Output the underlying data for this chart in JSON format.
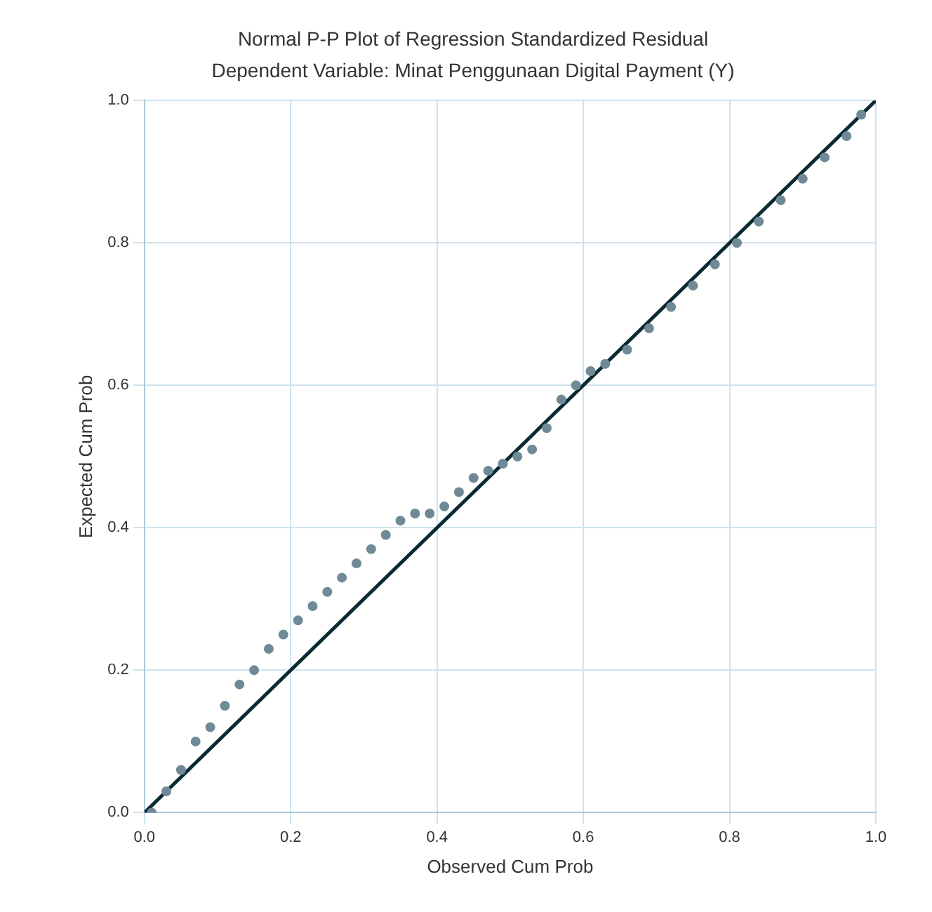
{
  "chart_data": {
    "type": "scatter",
    "title": "Normal P-P Plot of Regression Standardized Residual",
    "subtitle": "Dependent Variable: Minat Penggunaan Digital Payment (Y)",
    "xlabel": "Observed Cum Prob",
    "ylabel": "Expected Cum Prob",
    "xlim": [
      0,
      1
    ],
    "ylim": [
      0,
      1
    ],
    "xticks": [
      {
        "value": 0,
        "label": "0.0"
      },
      {
        "value": 0.2,
        "label": "0.2"
      },
      {
        "value": 0.4,
        "label": "0.4"
      },
      {
        "value": 0.6,
        "label": "0.6"
      },
      {
        "value": 0.8,
        "label": "0.8"
      },
      {
        "value": 1,
        "label": "1.0"
      }
    ],
    "yticks": [
      {
        "value": 0,
        "label": "0.0"
      },
      {
        "value": 0.2,
        "label": "0.2"
      },
      {
        "value": 0.4,
        "label": "0.4"
      },
      {
        "value": 0.6,
        "label": "0.6"
      },
      {
        "value": 0.8,
        "label": "0.8"
      },
      {
        "value": 1,
        "label": "1.0"
      }
    ],
    "grid": true,
    "marker": "circle",
    "series": [
      {
        "color": "#6f8a96",
        "x": [
          0.01,
          0.03,
          0.05,
          0.07,
          0.09,
          0.11,
          0.13,
          0.15,
          0.17,
          0.19,
          0.21,
          0.23,
          0.25,
          0.27,
          0.29,
          0.31,
          0.33,
          0.35,
          0.37,
          0.39,
          0.41,
          0.43,
          0.45,
          0.47,
          0.49,
          0.51,
          0.53,
          0.55,
          0.57,
          0.59,
          0.61,
          0.63,
          0.66,
          0.69,
          0.72,
          0.75,
          0.78,
          0.81,
          0.84,
          0.87,
          0.9,
          0.93,
          0.96,
          0.98
        ],
        "values": [
          0.0,
          0.03,
          0.06,
          0.1,
          0.12,
          0.15,
          0.18,
          0.2,
          0.23,
          0.25,
          0.27,
          0.29,
          0.31,
          0.33,
          0.35,
          0.37,
          0.39,
          0.41,
          0.42,
          0.42,
          0.43,
          0.45,
          0.47,
          0.48,
          0.49,
          0.5,
          0.51,
          0.54,
          0.58,
          0.6,
          0.62,
          0.63,
          0.65,
          0.68,
          0.71,
          0.74,
          0.77,
          0.8,
          0.83,
          0.86,
          0.89,
          0.92,
          0.95,
          0.98
        ]
      },
      {
        "type": "line",
        "marker": "none",
        "color": "#0a2a33",
        "x": [
          0,
          1
        ],
        "values": [
          0,
          1
        ]
      }
    ]
  }
}
